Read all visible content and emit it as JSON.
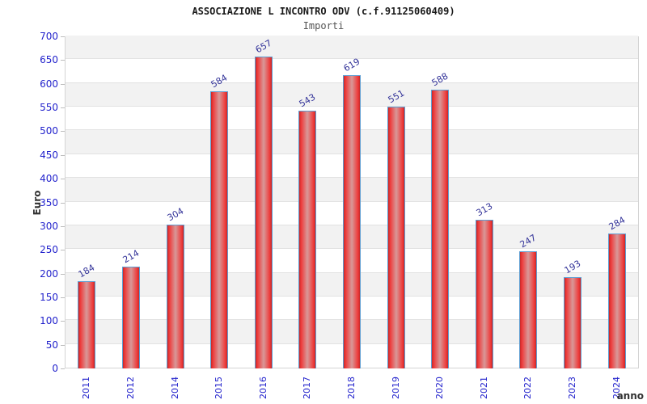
{
  "chart_data": {
    "type": "bar",
    "title": "ASSOCIAZIONE L INCONTRO ODV (c.f.91125060409)",
    "subtitle": "Importi",
    "xlabel": "anno",
    "ylabel": "Euro",
    "categories": [
      "2011",
      "2012",
      "2014",
      "2015",
      "2016",
      "2017",
      "2018",
      "2019",
      "2020",
      "2021",
      "2022",
      "2023",
      "2024"
    ],
    "values": [
      184,
      214,
      304,
      584,
      657,
      543,
      619,
      551,
      588,
      313,
      247,
      193,
      284
    ],
    "ylim": [
      0,
      700
    ],
    "ytick_step": 50,
    "grid": true,
    "legend": "none",
    "band_fill_alternating": true,
    "colors": {
      "bar_edge_red": "#c62828",
      "bar_bright_red": "#ee3b3b",
      "bar_center_light": "#d89898",
      "bar_border_blue": "#5f9ed2",
      "axis_tick_blue": "#2222cc",
      "value_label_navy": "#333399",
      "band_gray": "#f2f2f2",
      "gridline_gray": "#e2e2e2",
      "axis_text_dark": "#333333"
    }
  }
}
